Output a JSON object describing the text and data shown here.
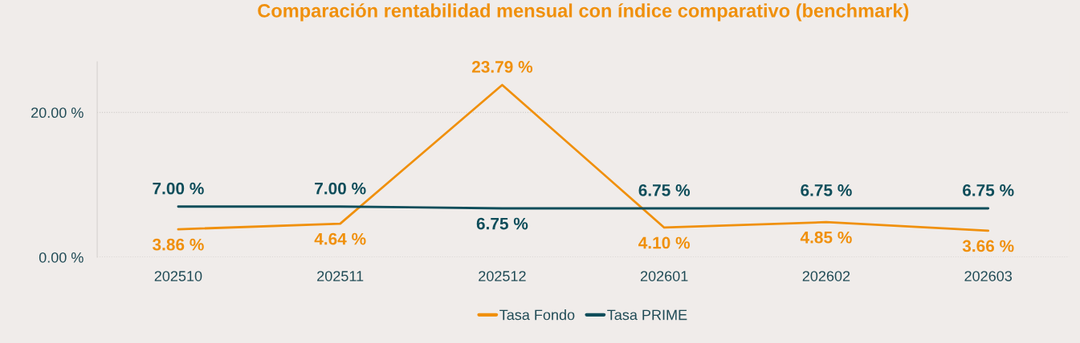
{
  "chart_data": {
    "type": "line",
    "title": "Comparación rentabilidad mensual con índice comparativo (benchmark)",
    "categories": [
      "202510",
      "202511",
      "202512",
      "202601",
      "202602",
      "202603"
    ],
    "series": [
      {
        "name": "Tasa Fondo",
        "color": "#f0900c",
        "values": [
          3.86,
          4.64,
          23.79,
          4.1,
          4.85,
          3.66
        ],
        "value_labels": [
          "3.86 %",
          "4.64 %",
          "23.79 %",
          "4.10 %",
          "4.85 %",
          "3.66 %"
        ]
      },
      {
        "name": "Tasa PRIME",
        "color": "#0e4d5a",
        "values": [
          7.0,
          7.0,
          6.75,
          6.75,
          6.75,
          6.75
        ],
        "value_labels": [
          "7.00 %",
          "7.00 %",
          "6.75 %",
          "6.75 %",
          "6.75 %",
          "6.75 %"
        ]
      }
    ],
    "ylim": [
      0,
      27
    ],
    "yticks": [
      {
        "value": 0,
        "label": "0.00 %"
      },
      {
        "value": 20,
        "label": "20.00 %"
      }
    ],
    "grid": "y",
    "legend": "bottom",
    "marker": "none",
    "line_style": "solid"
  }
}
